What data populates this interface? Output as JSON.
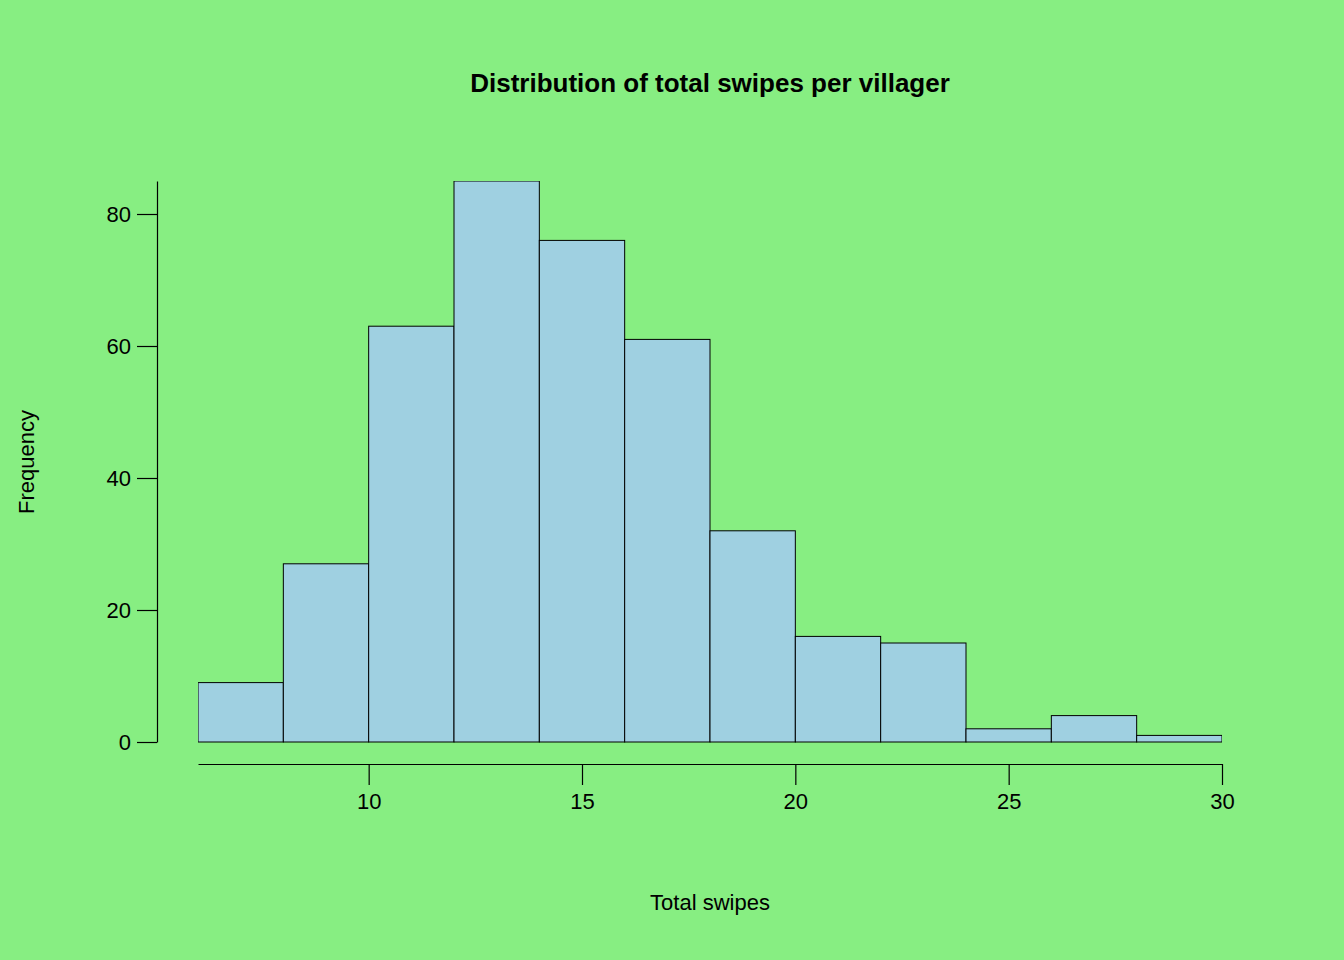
{
  "chart_data": {
    "type": "histogram",
    "title": "Distribution of total swipes per villager",
    "x_label": "Total swipes",
    "y_label": "Frequency",
    "bins": [
      6,
      8,
      10,
      12,
      14,
      16,
      18,
      20,
      22,
      24,
      26,
      28,
      30
    ],
    "values": [
      9,
      27,
      63,
      85,
      76,
      61,
      32,
      16,
      15,
      2,
      4,
      1
    ],
    "color": "#9fd0e1",
    "xlim": [
      6,
      30
    ],
    "ylim": [
      0,
      85
    ],
    "xticks": [
      10,
      15,
      20,
      25,
      30
    ],
    "yticks": [
      0,
      20,
      40,
      60,
      80
    ]
  }
}
